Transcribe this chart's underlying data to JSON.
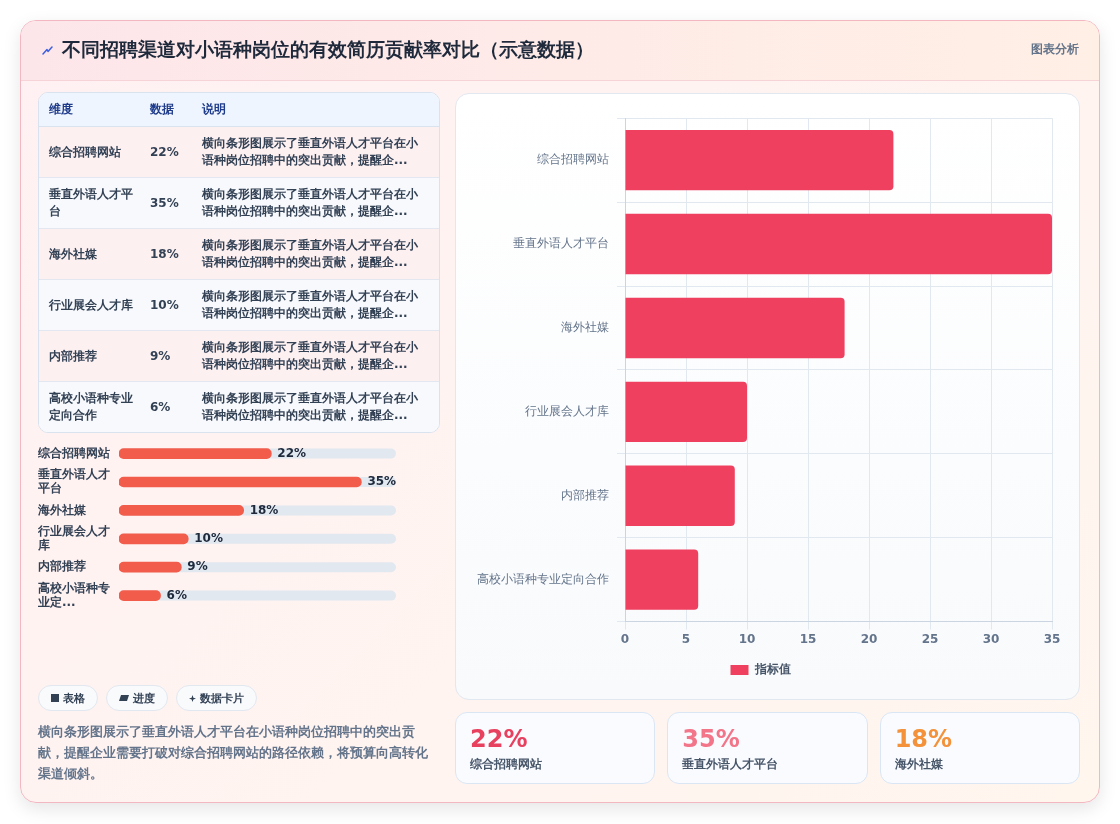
{
  "chart_data": [
    {
      "type": "other",
      "title": "不同招聘渠道对小语种岗位的有效简历贡献率对比（示意数据）",
      "annotations": [
        "图表分析"
      ]
    },
    {
      "type": "other",
      "categories": [
        "综合招聘网站",
        "垂直外语人才平台",
        "海外社媒",
        "行业展会人才库",
        "内部推荐",
        "高校小语种专业定向合作"
      ],
      "value_labels": [
        "22%",
        "35%",
        "18%",
        "10%",
        "9%",
        "6%"
      ],
      "annotations": [
        "维度",
        "数据",
        "说明",
        "横向条形图展示了垂直外语人才平台在小语种岗位招聘中的突出贡献，提醒企...",
        "横向条形图展示了垂直外语人才平台在小语种岗位招聘中的突出贡献，提醒企...",
        "横向条形图展示了垂直外语人才平台在小语种岗位招聘中的突出贡献，提醒企...",
        "横向条形图展示了垂直外语人才平台在小语种岗位招聘中的突出贡献，提醒企...",
        "横向条形图展示了垂直外语人才平台在小语种岗位招聘中的突出贡献，提醒企...",
        "横向条形图展示了垂直外语人才平台在小语种岗位招聘中的突出贡献，提醒企..."
      ]
    },
    {
      "type": "bar",
      "orientation": "horizontal",
      "categories": [
        "综合招聘网站",
        "垂直外语人才平台",
        "海外社媒",
        "行业展会人才库",
        "内部推荐",
        "高校小语种专业定..."
      ],
      "values": [
        22,
        35,
        18,
        10,
        9,
        6
      ],
      "value_labels": [
        "22%",
        "35%",
        "18%",
        "10%",
        "9%",
        "6%"
      ],
      "color": "#f25c4b",
      "tick_labels": "y"
    },
    {
      "type": "other",
      "annotations": [
        "表格",
        "进度",
        "数据卡片",
        "横向条形图展示了垂直外语人才平台在小语种岗位招聘中的突出贡献，提醒企业需要打破对综合招聘网站的路径依赖，将预算向高转化渠道倾斜。"
      ]
    },
    {
      "type": "bar",
      "orientation": "horizontal",
      "categories": [
        "综合招聘网站",
        "垂直外语人才平台",
        "海外社媒",
        "行业展会人才库",
        "内部推荐",
        "高校小语种专业定向合作"
      ],
      "series": [
        {
          "name": "指标值",
          "color": "#f0405f",
          "values": [
            22,
            35,
            18,
            10,
            9,
            6
          ]
        }
      ],
      "xlim": [
        0,
        35
      ],
      "xticks": [
        0,
        5,
        10,
        15,
        20,
        25,
        30,
        35
      ],
      "grid": true,
      "legend": "bottom"
    },
    {
      "type": "other",
      "categories": [
        "综合招聘网站",
        "垂直外语人才平台",
        "海外社媒"
      ],
      "value_labels": [
        "22%",
        "35%",
        "18%"
      ]
    }
  ]
}
